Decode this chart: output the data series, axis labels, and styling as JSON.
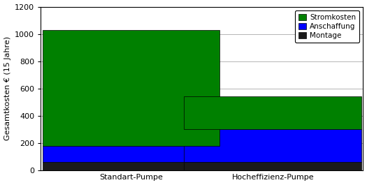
{
  "categories": [
    "Standart-Pumpe",
    "Hocheffizienz-Pumpe"
  ],
  "montage": [
    60,
    60
  ],
  "anschaffung": [
    120,
    240
  ],
  "stromkosten": [
    850,
    240
  ],
  "color_montage": "#1A1A1A",
  "color_anschaffung": "#0000FF",
  "color_stromkosten": "#008000",
  "ylabel": "Gesamtkosten € (15 Jahre)",
  "ylim": [
    0,
    1200
  ],
  "yticks": [
    0,
    200,
    400,
    600,
    800,
    1000,
    1200
  ],
  "bar_width": 0.55,
  "bar_positions": [
    0.28,
    0.72
  ],
  "xlim": [
    0.0,
    1.0
  ],
  "background_color": "#FFFFFF",
  "edge_color": "#000000",
  "axis_fontsize": 8,
  "legend_fontsize": 7.5
}
